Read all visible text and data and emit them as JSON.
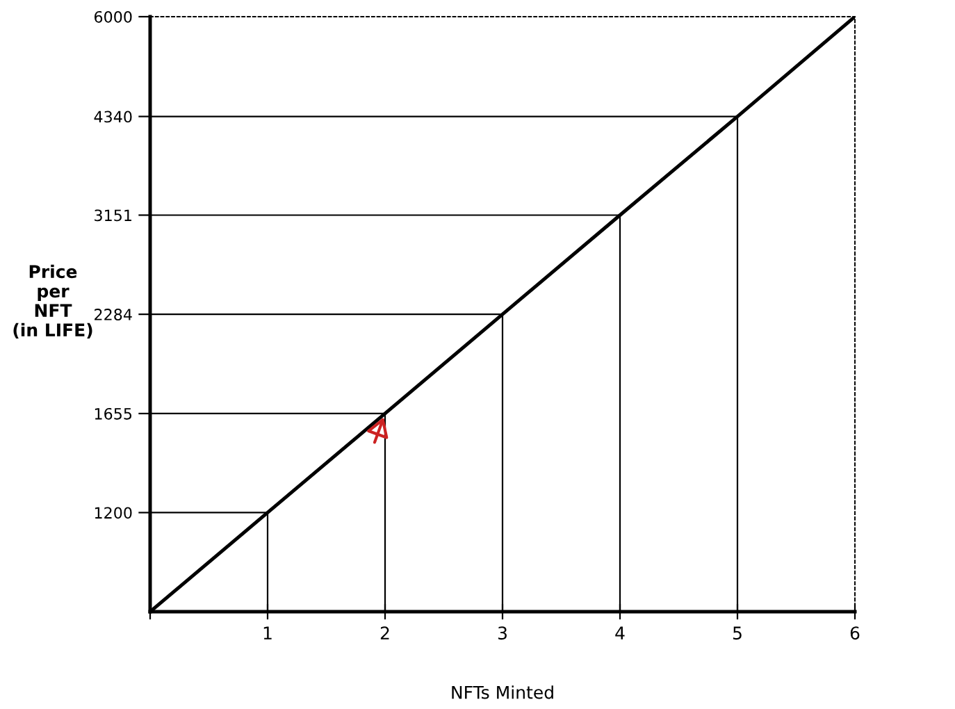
{
  "chart_data": {
    "type": "line",
    "xlabel": "NFTs Minted",
    "ylabel": "Price\nper\nNFT\n(in LIFE)",
    "x": [
      0,
      1,
      2,
      3,
      4,
      5,
      6
    ],
    "series": [
      {
        "color": "#000000",
        "values": [
          870,
          1200,
          1655,
          2284,
          3151,
          4340,
          6000
        ]
      },
      {
        "color": "#000000",
        "x": [
          0,
          1,
          1
        ],
        "values": [
          1200,
          1200,
          870
        ]
      },
      {
        "color": "#000000",
        "x": [
          0,
          2,
          2
        ],
        "values": [
          1655,
          1655,
          870
        ]
      },
      {
        "color": "#000000",
        "x": [
          0,
          3,
          3
        ],
        "values": [
          2284,
          2284,
          870
        ]
      },
      {
        "color": "#000000",
        "x": [
          0,
          4,
          4
        ],
        "values": [
          3151,
          3151,
          870
        ]
      },
      {
        "color": "#000000",
        "x": [
          0,
          5,
          5
        ],
        "values": [
          4340,
          4340,
          870
        ]
      }
    ],
    "log": "y",
    "xlim": [
      0,
      6
    ],
    "ylim": [
      870,
      6000
    ],
    "xticks": [
      {
        "value": 0,
        "label": null
      },
      1,
      2,
      3,
      4,
      5,
      6
    ],
    "yticks": [
      1200,
      1655,
      2284,
      3151,
      4340,
      6000
    ],
    "legend": false,
    "marker": "none",
    "line_style": "solid"
  }
}
